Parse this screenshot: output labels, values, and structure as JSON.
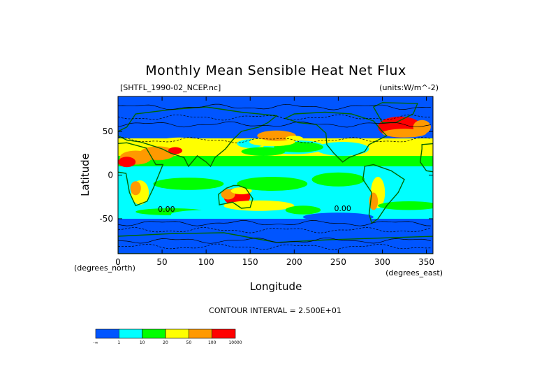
{
  "chart_data": {
    "type": "heatmap",
    "title": "Monthly Mean Sensible Heat Net Flux",
    "file_label": "[SHTFL_1990-02_NCEP.nc]",
    "units_label": "(units:W/m^-2)",
    "xlabel": "Longitude",
    "ylabel": "Latitude",
    "x_unit_label": "(degrees_east)",
    "y_unit_label": "(degrees_north)",
    "xlim": [
      0,
      357.5
    ],
    "ylim": [
      -90,
      90
    ],
    "x_ticks": [
      0,
      50,
      100,
      150,
      200,
      250,
      300,
      350
    ],
    "y_ticks": [
      50,
      0,
      -50
    ],
    "contour_interval_label": "CONTOUR INTERVAL = 2.500E+01",
    "annotations": [
      {
        "text": "0.00",
        "lon": 55,
        "lat": -42
      },
      {
        "text": "0.00",
        "lon": 255,
        "lat": -41
      }
    ],
    "colorbar": {
      "colors": [
        "#0055ff",
        "#00ffff",
        "#00ff00",
        "#ffff00",
        "#ff9900",
        "#ff0000"
      ],
      "labels": [
        "-∞",
        "1",
        "10",
        "20",
        "50",
        "100",
        "10000"
      ]
    },
    "land_color": "#006600",
    "contour_color": "#000000"
  }
}
